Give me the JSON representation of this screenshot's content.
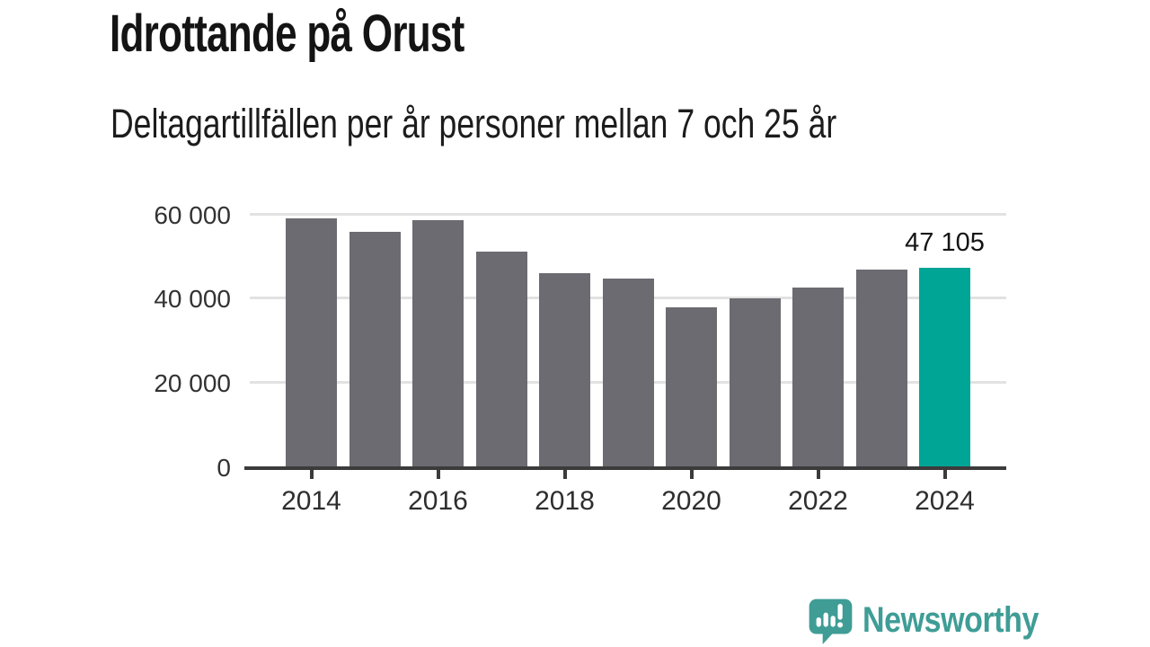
{
  "header": {
    "title": "Idrottande på Orust",
    "subtitle": "Deltagartillfällen per år personer mellan 7 och 25 år"
  },
  "chart_data": {
    "type": "bar",
    "title": "Idrottande på Orust",
    "subtitle": "Deltagartillfällen per år personer mellan 7 och 25 år",
    "categories": [
      2014,
      2015,
      2016,
      2017,
      2018,
      2019,
      2020,
      2021,
      2022,
      2023,
      2024
    ],
    "values": [
      58900,
      55800,
      58600,
      51000,
      46000,
      44700,
      37700,
      40000,
      42600,
      46800,
      47105
    ],
    "highlight_index": 10,
    "annotation": {
      "text": "47 105",
      "index": 10
    },
    "ylim": [
      0,
      60000
    ],
    "yticks": [
      0,
      20000,
      40000,
      60000
    ],
    "ytick_labels": [
      "0",
      "20 000",
      "40 000",
      "60 000"
    ],
    "xtick_labels": [
      "2014",
      "2016",
      "2018",
      "2020",
      "2022",
      "2024"
    ],
    "xlabel": "",
    "ylabel": "",
    "grid": true,
    "legend": false,
    "bar_color": "#6c6b71",
    "highlight_color": "#00a596"
  },
  "footer": {
    "logo_text": "Newsworthy"
  },
  "colors": {
    "bar_gray": "#6c6b71",
    "highlight_teal": "#00a596",
    "gridline": "#e2e2e2",
    "axis": "#3b3b3b",
    "logo_teal": "#3f9d96",
    "text_dark": "#141414"
  }
}
